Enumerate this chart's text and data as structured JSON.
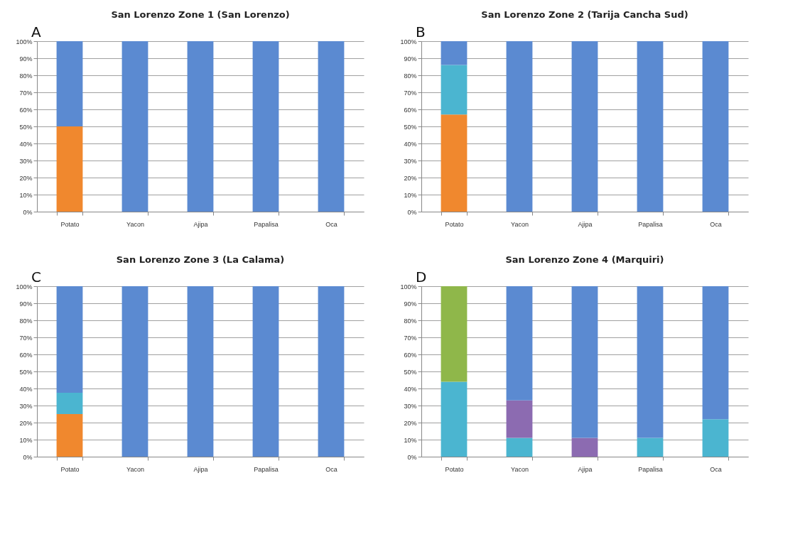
{
  "chart_data": [
    {
      "type": "bar",
      "stacked": true,
      "title": "San Lorenzo Zone 1 (San Lorenzo)",
      "annotations": [
        "A"
      ],
      "categories": [
        "Potato",
        "Yacon",
        "Ajipa",
        "Papalisa",
        "Oca"
      ],
      "ylim": [
        0,
        100
      ],
      "yticks": [
        {
          "value": 0,
          "label": "0%"
        },
        {
          "value": 10,
          "label": "10%"
        },
        {
          "value": 20,
          "label": "20%"
        },
        {
          "value": 30,
          "label": "30%"
        },
        {
          "value": 40,
          "label": "40%"
        },
        {
          "value": 50,
          "label": "50%"
        },
        {
          "value": 60,
          "label": "60%"
        },
        {
          "value": 70,
          "label": "70%"
        },
        {
          "value": 80,
          "label": "80%"
        },
        {
          "value": 90,
          "label": "90%"
        },
        {
          "value": 100,
          "label": "100%"
        }
      ],
      "grid": "y",
      "series": [
        {
          "color": "#f0882e",
          "values": [
            50,
            null,
            null,
            null,
            null
          ]
        },
        {
          "color": "#5b8ad1",
          "values": [
            50,
            100,
            100,
            100,
            100
          ]
        }
      ]
    },
    {
      "type": "bar",
      "stacked": true,
      "title": "San Lorenzo Zone 2 (Tarija Cancha Sud)",
      "annotations": [
        "B"
      ],
      "categories": [
        "Potato",
        "Yacon",
        "Ajipa",
        "Papalisa",
        "Oca"
      ],
      "ylim": [
        0,
        100
      ],
      "yticks": [
        {
          "value": 0,
          "label": "0%"
        },
        {
          "value": 10,
          "label": "10%"
        },
        {
          "value": 20,
          "label": "20%"
        },
        {
          "value": 30,
          "label": "30%"
        },
        {
          "value": 40,
          "label": "40%"
        },
        {
          "value": 50,
          "label": "50%"
        },
        {
          "value": 60,
          "label": "60%"
        },
        {
          "value": 70,
          "label": "70%"
        },
        {
          "value": 80,
          "label": "80%"
        },
        {
          "value": 90,
          "label": "90%"
        },
        {
          "value": 100,
          "label": "100%"
        }
      ],
      "grid": "y",
      "series": [
        {
          "color": "#f0882e",
          "values": [
            57,
            null,
            null,
            null,
            null
          ]
        },
        {
          "color": "#4bb5d0",
          "values": [
            29,
            null,
            null,
            null,
            null
          ]
        },
        {
          "color": "#5b8ad1",
          "values": [
            14,
            100,
            100,
            100,
            100
          ]
        }
      ]
    },
    {
      "type": "bar",
      "stacked": true,
      "title": "San Lorenzo Zone 3 (La Calama)",
      "annotations": [
        "C"
      ],
      "categories": [
        "Potato",
        "Yacon",
        "Ajipa",
        "Papalisa",
        "Oca"
      ],
      "ylim": [
        0,
        100
      ],
      "yticks": [
        {
          "value": 0,
          "label": "0%"
        },
        {
          "value": 10,
          "label": "10%"
        },
        {
          "value": 20,
          "label": "20%"
        },
        {
          "value": 30,
          "label": "30%"
        },
        {
          "value": 40,
          "label": "40%"
        },
        {
          "value": 50,
          "label": "50%"
        },
        {
          "value": 60,
          "label": "60%"
        },
        {
          "value": 70,
          "label": "70%"
        },
        {
          "value": 80,
          "label": "80%"
        },
        {
          "value": 90,
          "label": "90%"
        },
        {
          "value": 100,
          "label": "100%"
        }
      ],
      "grid": "y",
      "series": [
        {
          "color": "#f0882e",
          "values": [
            25,
            null,
            null,
            null,
            null
          ]
        },
        {
          "color": "#4bb5d0",
          "values": [
            12.5,
            null,
            null,
            null,
            null
          ]
        },
        {
          "color": "#5b8ad1",
          "values": [
            62.5,
            100,
            100,
            100,
            100
          ]
        }
      ]
    },
    {
      "type": "bar",
      "stacked": true,
      "title": "San Lorenzo Zone 4 (Marquiri)",
      "annotations": [
        "D"
      ],
      "categories": [
        "Potato",
        "Yacon",
        "Ajipa",
        "Papalisa",
        "Oca"
      ],
      "ylim": [
        0,
        100
      ],
      "yticks": [
        {
          "value": 0,
          "label": "0%"
        },
        {
          "value": 10,
          "label": "10%"
        },
        {
          "value": 20,
          "label": "20%"
        },
        {
          "value": 30,
          "label": "30%"
        },
        {
          "value": 40,
          "label": "40%"
        },
        {
          "value": 50,
          "label": "50%"
        },
        {
          "value": 60,
          "label": "60%"
        },
        {
          "value": 70,
          "label": "70%"
        },
        {
          "value": 80,
          "label": "80%"
        },
        {
          "value": 90,
          "label": "90%"
        },
        {
          "value": 100,
          "label": "100%"
        }
      ],
      "grid": "y",
      "series": [
        {
          "color": "#4bb5d0",
          "values": [
            44,
            11,
            null,
            11,
            22
          ]
        },
        {
          "color": "#8c6bb1",
          "values": [
            null,
            22,
            11,
            null,
            null
          ]
        },
        {
          "color": "#8fb74a",
          "values": [
            56,
            null,
            null,
            null,
            null
          ]
        },
        {
          "color": "#5b8ad1",
          "values": [
            null,
            67,
            89,
            89,
            78
          ]
        }
      ]
    }
  ]
}
